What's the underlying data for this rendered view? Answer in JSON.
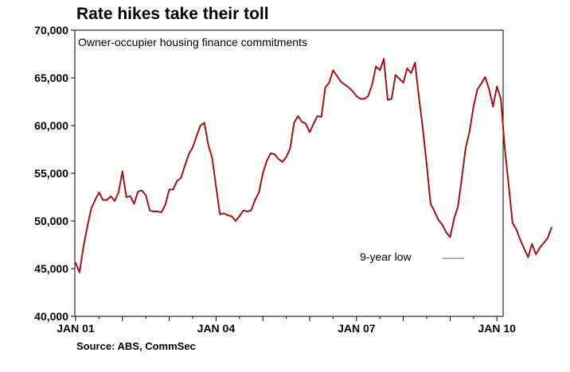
{
  "chart_data": {
    "type": "line",
    "title": "Rate hikes take their toll",
    "subtitle": "Owner-occupier housing finance commitments",
    "source": "Source: ABS, CommSec",
    "annotation": "9-year low",
    "ylim": [
      40000,
      70000
    ],
    "yticks": [
      40000,
      45000,
      50000,
      55000,
      60000,
      65000,
      70000
    ],
    "ytick_labels": [
      "40,000",
      "45,000",
      "50,000",
      "55,000",
      "60,000",
      "65,000",
      "70,000"
    ],
    "xtick_labels": [
      "JAN 01",
      "JAN 04",
      "JAN 07",
      "JAN 10"
    ],
    "xtick_months": [
      0,
      36,
      72,
      108
    ],
    "line_color": "#a01418",
    "series": [
      {
        "name": "Owner-occupier housing finance commitments",
        "start": "2001-01",
        "values": [
          45600,
          44600,
          47300,
          49400,
          51300,
          52200,
          53000,
          52200,
          52200,
          52600,
          52100,
          53000,
          55200,
          52500,
          52600,
          51800,
          53100,
          53200,
          52700,
          51100,
          51000,
          51000,
          50900,
          51700,
          53300,
          53300,
          54200,
          54500,
          55800,
          57000,
          57700,
          58900,
          60000,
          60300,
          58000,
          56600,
          53600,
          50700,
          50800,
          50600,
          50500,
          50000,
          50500,
          51100,
          51000,
          51100,
          52200,
          53000,
          55000,
          56300,
          57100,
          57000,
          56500,
          56200,
          56700,
          57600,
          60300,
          61000,
          60400,
          60200,
          59300,
          60200,
          61000,
          60900,
          64000,
          64500,
          65800,
          65200,
          64600,
          64300,
          64000,
          63600,
          63100,
          62800,
          62800,
          63100,
          64300,
          66200,
          65800,
          67000,
          62700,
          62800,
          65300,
          64900,
          64500,
          66000,
          65500,
          66600,
          63000,
          59700,
          55900,
          51800,
          51000,
          50100,
          49600,
          48800,
          48300,
          50200,
          51500,
          54500,
          57700,
          59400,
          62000,
          63800,
          64400,
          65100,
          63800,
          62000,
          64100,
          62800,
          57700,
          53800,
          49800,
          49100,
          48000,
          47100,
          46200,
          47600,
          46500,
          47200,
          47700,
          48200,
          49300
        ]
      }
    ]
  }
}
